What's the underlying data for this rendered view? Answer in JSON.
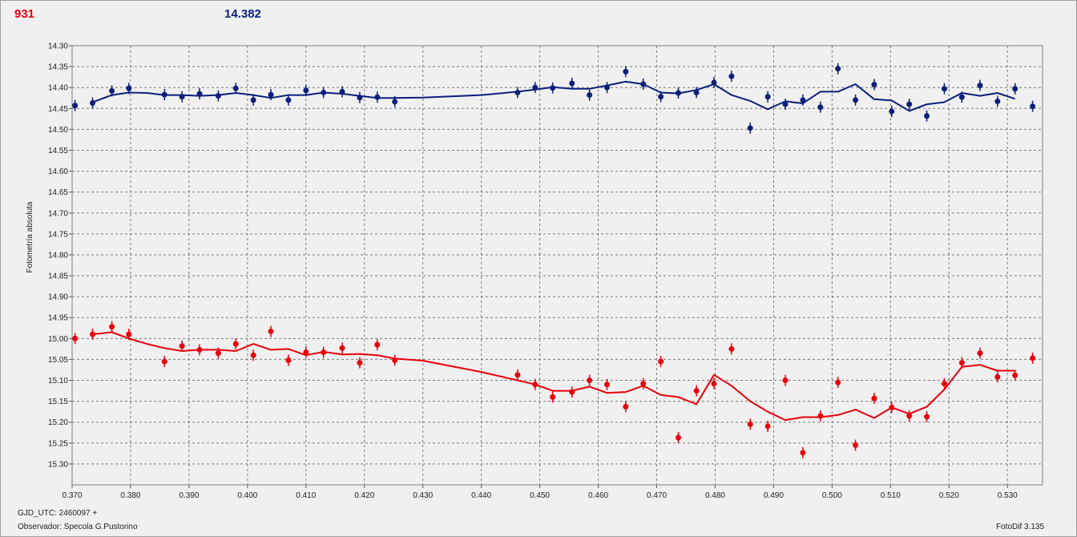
{
  "header": {
    "left_value": "931",
    "right_value": "14.382",
    "left_color": "#e8000b",
    "right_color": "#0b1f7a"
  },
  "footer": {
    "gjd": "GJD_UTC: 2460097 +",
    "observer": "Observador: Specola G.Pustorino",
    "app": "FotoDif 3.135"
  },
  "chart_data": {
    "type": "scatter",
    "ylabel": "Fotometría absoluta",
    "xlabel": "",
    "xlim": [
      0.37,
      0.536
    ],
    "ylim": [
      14.3,
      15.35
    ],
    "y_inverted": true,
    "grid": true,
    "x_ticks": [
      "0.370",
      "0.380",
      "0.390",
      "0.400",
      "0.410",
      "0.420",
      "0.430",
      "0.440",
      "0.450",
      "0.460",
      "0.470",
      "0.480",
      "0.490",
      "0.500",
      "0.510",
      "0.520",
      "0.530"
    ],
    "y_ticks": [
      "14.30",
      "14.35",
      "14.40",
      "14.45",
      "14.50",
      "14.55",
      "14.60",
      "14.65",
      "14.70",
      "14.75",
      "14.80",
      "14.85",
      "14.90",
      "14.95",
      "15.00",
      "15.05",
      "15.10",
      "15.15",
      "15.20",
      "15.25",
      "15.30"
    ],
    "series": [
      {
        "color": "#0b1f7a",
        "points": [
          [
            0.3705,
            14.443
          ],
          [
            0.3735,
            14.437
          ],
          [
            0.3768,
            14.408
          ],
          [
            0.3797,
            14.402
          ],
          [
            0.3858,
            14.417
          ],
          [
            0.3888,
            14.422
          ],
          [
            0.3918,
            14.415
          ],
          [
            0.395,
            14.42
          ],
          [
            0.398,
            14.402
          ],
          [
            0.401,
            14.43
          ],
          [
            0.404,
            14.417
          ],
          [
            0.407,
            14.43
          ],
          [
            0.41,
            14.407
          ],
          [
            0.413,
            14.412
          ],
          [
            0.4162,
            14.41
          ],
          [
            0.4192,
            14.424
          ],
          [
            0.4222,
            14.423
          ],
          [
            0.4252,
            14.434
          ],
          [
            0.4462,
            14.412
          ],
          [
            0.4492,
            14.4
          ],
          [
            0.4522,
            14.401
          ],
          [
            0.4555,
            14.39
          ],
          [
            0.4585,
            14.418
          ],
          [
            0.4615,
            14.4
          ],
          [
            0.4647,
            14.362
          ],
          [
            0.4677,
            14.392
          ],
          [
            0.4707,
            14.422
          ],
          [
            0.4737,
            14.413
          ],
          [
            0.4768,
            14.412
          ],
          [
            0.4798,
            14.388
          ],
          [
            0.4828,
            14.373
          ],
          [
            0.486,
            14.497
          ],
          [
            0.489,
            14.422
          ],
          [
            0.492,
            14.44
          ],
          [
            0.495,
            14.43
          ],
          [
            0.498,
            14.447
          ],
          [
            0.501,
            14.355
          ],
          [
            0.504,
            14.43
          ],
          [
            0.5072,
            14.393
          ],
          [
            0.5102,
            14.457
          ],
          [
            0.5132,
            14.44
          ],
          [
            0.5162,
            14.468
          ],
          [
            0.5192,
            14.403
          ],
          [
            0.5222,
            14.423
          ],
          [
            0.5253,
            14.395
          ],
          [
            0.5283,
            14.433
          ],
          [
            0.5313,
            14.403
          ],
          [
            0.5343,
            14.445
          ]
        ],
        "line": [
          [
            0.3735,
            14.435
          ],
          [
            0.3768,
            14.418
          ],
          [
            0.3797,
            14.412
          ],
          [
            0.3828,
            14.413
          ],
          [
            0.3858,
            14.418
          ],
          [
            0.3888,
            14.418
          ],
          [
            0.3918,
            14.42
          ],
          [
            0.395,
            14.418
          ],
          [
            0.398,
            14.413
          ],
          [
            0.401,
            14.418
          ],
          [
            0.404,
            14.425
          ],
          [
            0.407,
            14.418
          ],
          [
            0.41,
            14.418
          ],
          [
            0.413,
            14.412
          ],
          [
            0.4162,
            14.415
          ],
          [
            0.4192,
            14.42
          ],
          [
            0.4222,
            14.425
          ],
          [
            0.4252,
            14.425
          ],
          [
            0.43,
            14.424
          ],
          [
            0.44,
            14.418
          ],
          [
            0.4462,
            14.41
          ],
          [
            0.4492,
            14.405
          ],
          [
            0.4522,
            14.399
          ],
          [
            0.4555,
            14.403
          ],
          [
            0.4585,
            14.403
          ],
          [
            0.4615,
            14.395
          ],
          [
            0.4647,
            14.386
          ],
          [
            0.4677,
            14.392
          ],
          [
            0.4707,
            14.412
          ],
          [
            0.4737,
            14.414
          ],
          [
            0.4768,
            14.406
          ],
          [
            0.4798,
            14.392
          ],
          [
            0.4828,
            14.418
          ],
          [
            0.486,
            14.432
          ],
          [
            0.489,
            14.452
          ],
          [
            0.492,
            14.433
          ],
          [
            0.495,
            14.438
          ],
          [
            0.498,
            14.41
          ],
          [
            0.501,
            14.41
          ],
          [
            0.504,
            14.392
          ],
          [
            0.5072,
            14.428
          ],
          [
            0.5102,
            14.431
          ],
          [
            0.5132,
            14.456
          ],
          [
            0.5162,
            14.44
          ],
          [
            0.5192,
            14.435
          ],
          [
            0.5222,
            14.413
          ],
          [
            0.5253,
            14.42
          ],
          [
            0.5283,
            14.413
          ],
          [
            0.5313,
            14.427
          ]
        ]
      },
      {
        "color": "#e8000b",
        "points": [
          [
            0.3705,
            15.0
          ],
          [
            0.3735,
            14.99
          ],
          [
            0.3768,
            14.972
          ],
          [
            0.3797,
            14.99
          ],
          [
            0.3858,
            15.055
          ],
          [
            0.3888,
            15.018
          ],
          [
            0.3918,
            15.027
          ],
          [
            0.395,
            15.035
          ],
          [
            0.398,
            15.013
          ],
          [
            0.401,
            15.04
          ],
          [
            0.404,
            14.983
          ],
          [
            0.407,
            15.052
          ],
          [
            0.41,
            15.033
          ],
          [
            0.413,
            15.033
          ],
          [
            0.4162,
            15.023
          ],
          [
            0.4192,
            15.058
          ],
          [
            0.4222,
            15.015
          ],
          [
            0.4252,
            15.052
          ],
          [
            0.4462,
            15.087
          ],
          [
            0.4492,
            15.11
          ],
          [
            0.4522,
            15.14
          ],
          [
            0.4555,
            15.128
          ],
          [
            0.4585,
            15.1
          ],
          [
            0.4615,
            15.11
          ],
          [
            0.4647,
            15.163
          ],
          [
            0.4677,
            15.108
          ],
          [
            0.4707,
            15.055
          ],
          [
            0.4737,
            15.237
          ],
          [
            0.4768,
            15.125
          ],
          [
            0.4798,
            15.108
          ],
          [
            0.4828,
            15.025
          ],
          [
            0.486,
            15.205
          ],
          [
            0.489,
            15.21
          ],
          [
            0.492,
            15.1
          ],
          [
            0.495,
            15.273
          ],
          [
            0.498,
            15.185
          ],
          [
            0.501,
            15.105
          ],
          [
            0.504,
            15.255
          ],
          [
            0.5072,
            15.143
          ],
          [
            0.5102,
            15.165
          ],
          [
            0.5132,
            15.185
          ],
          [
            0.5162,
            15.187
          ],
          [
            0.5192,
            15.108
          ],
          [
            0.5222,
            15.058
          ],
          [
            0.5253,
            15.035
          ],
          [
            0.5283,
            15.092
          ],
          [
            0.5313,
            15.088
          ],
          [
            0.5343,
            15.047
          ]
        ],
        "line": [
          [
            0.3735,
            14.99
          ],
          [
            0.3768,
            14.985
          ],
          [
            0.3797,
            15.0
          ],
          [
            0.3828,
            15.013
          ],
          [
            0.3858,
            15.023
          ],
          [
            0.3888,
            15.03
          ],
          [
            0.3918,
            15.027
          ],
          [
            0.395,
            15.027
          ],
          [
            0.398,
            15.03
          ],
          [
            0.401,
            15.013
          ],
          [
            0.404,
            15.027
          ],
          [
            0.407,
            15.025
          ],
          [
            0.41,
            15.04
          ],
          [
            0.413,
            15.032
          ],
          [
            0.4162,
            15.038
          ],
          [
            0.4192,
            15.037
          ],
          [
            0.4222,
            15.04
          ],
          [
            0.4252,
            15.048
          ],
          [
            0.43,
            15.053
          ],
          [
            0.44,
            15.08
          ],
          [
            0.4462,
            15.1
          ],
          [
            0.4492,
            15.11
          ],
          [
            0.4522,
            15.125
          ],
          [
            0.4555,
            15.125
          ],
          [
            0.4585,
            15.115
          ],
          [
            0.4615,
            15.13
          ],
          [
            0.4647,
            15.128
          ],
          [
            0.4677,
            15.113
          ],
          [
            0.4707,
            15.135
          ],
          [
            0.4737,
            15.14
          ],
          [
            0.4768,
            15.157
          ],
          [
            0.4798,
            15.087
          ],
          [
            0.4828,
            15.113
          ],
          [
            0.486,
            15.15
          ],
          [
            0.489,
            15.175
          ],
          [
            0.492,
            15.195
          ],
          [
            0.495,
            15.188
          ],
          [
            0.498,
            15.188
          ],
          [
            0.501,
            15.183
          ],
          [
            0.504,
            15.17
          ],
          [
            0.5072,
            15.19
          ],
          [
            0.5102,
            15.165
          ],
          [
            0.5132,
            15.18
          ],
          [
            0.5162,
            15.163
          ],
          [
            0.5192,
            15.122
          ],
          [
            0.5222,
            15.068
          ],
          [
            0.5253,
            15.063
          ],
          [
            0.5283,
            15.077
          ],
          [
            0.5313,
            15.077
          ]
        ]
      }
    ]
  }
}
